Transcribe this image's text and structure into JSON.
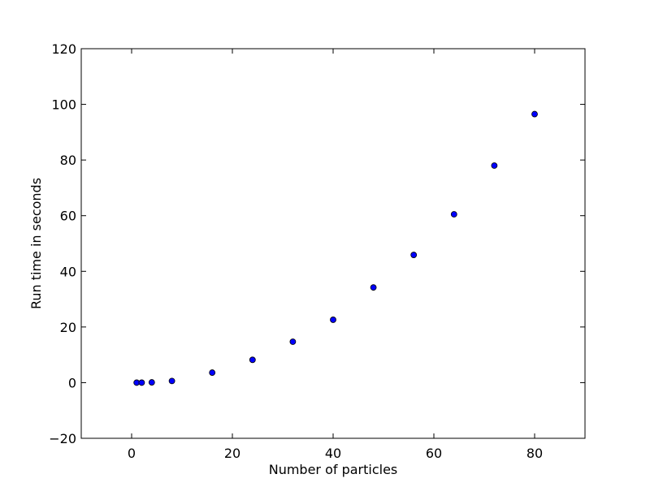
{
  "chart_data": {
    "type": "scatter",
    "title": "",
    "xlabel": "Number of particles",
    "ylabel": "Run time in seconds",
    "xlim": [
      -10,
      90
    ],
    "ylim": [
      -20,
      120
    ],
    "x_ticks": [
      0,
      20,
      40,
      60,
      80
    ],
    "y_ticks": [
      -20,
      0,
      20,
      40,
      60,
      80,
      100,
      120
    ],
    "x_tick_labels": [
      "0",
      "20",
      "40",
      "60",
      "80"
    ],
    "y_tick_labels": [
      "−20",
      "0",
      "20",
      "40",
      "60",
      "80",
      "100",
      "120"
    ],
    "grid": false,
    "marker_color": "#0000ff",
    "series": [
      {
        "x": [
          1,
          2,
          4,
          8,
          16,
          24,
          32,
          40,
          48,
          56,
          64,
          72,
          80
        ],
        "y": [
          0.0,
          0.0,
          0.1,
          0.6,
          3.6,
          8.2,
          14.7,
          22.6,
          34.2,
          45.9,
          60.5,
          78.0,
          96.5
        ]
      }
    ]
  }
}
